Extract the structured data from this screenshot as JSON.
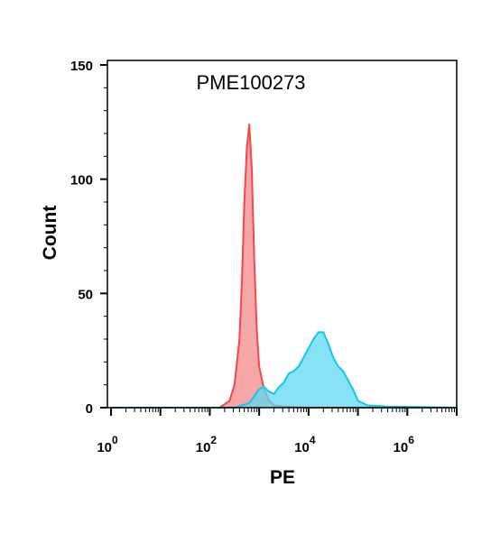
{
  "chart_data": {
    "type": "area",
    "title": "PME100273",
    "xlabel": "PE",
    "ylabel": "Count",
    "x_scale": "log10",
    "xlim": [
      0,
      7
    ],
    "ylim": [
      0,
      150
    ],
    "grid": false,
    "x_ticks": [
      {
        "base": "10",
        "exp": "0",
        "value": 0
      },
      {
        "base": "10",
        "exp": "2",
        "value": 2
      },
      {
        "base": "10",
        "exp": "4",
        "value": 4
      },
      {
        "base": "10",
        "exp": "6",
        "value": 6
      }
    ],
    "y_ticks": [
      {
        "label": "0",
        "value": 0
      },
      {
        "label": "50",
        "value": 50
      },
      {
        "label": "100",
        "value": 100
      },
      {
        "label": "150",
        "value": 150
      }
    ],
    "series": [
      {
        "fill": "#f4888a",
        "stroke": "#f0484c",
        "x": [
          0,
          2.2,
          2.4,
          2.5,
          2.6,
          2.65,
          2.7,
          2.75,
          2.8,
          2.85,
          2.9,
          2.95,
          3.0,
          3.1,
          3.2,
          3.3,
          3.5,
          4.0,
          5.0,
          7.0
        ],
        "y": [
          0,
          0,
          3,
          10,
          30,
          55,
          90,
          114,
          124,
          105,
          65,
          35,
          18,
          8,
          3,
          1,
          0.5,
          0,
          0,
          0
        ]
      },
      {
        "fill": "#5fd8f2",
        "stroke": "#12c6ee",
        "x": [
          0,
          2.5,
          2.8,
          2.9,
          3.0,
          3.1,
          3.2,
          3.3,
          3.4,
          3.5,
          3.6,
          3.7,
          3.8,
          3.9,
          4.0,
          4.1,
          4.2,
          4.3,
          4.4,
          4.5,
          4.6,
          4.7,
          4.8,
          4.9,
          5.0,
          5.2,
          5.6,
          7.0
        ],
        "y": [
          0,
          0,
          2,
          5,
          8,
          9,
          7,
          6,
          9,
          11,
          15,
          16,
          18,
          22,
          26,
          30,
          33,
          33,
          28,
          22,
          18,
          16,
          12,
          8,
          3,
          1,
          0.5,
          0
        ]
      }
    ]
  }
}
